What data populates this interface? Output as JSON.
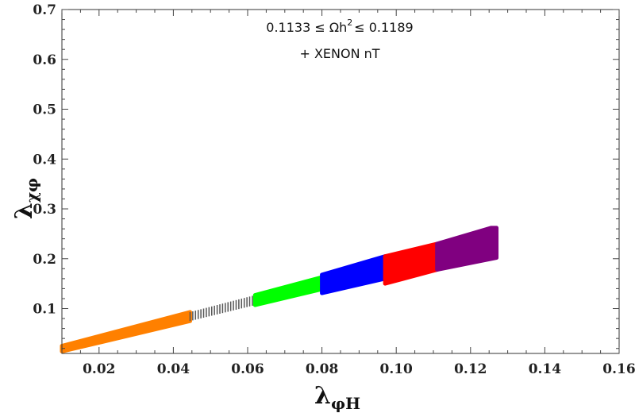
{
  "chart_data": {
    "type": "scatter",
    "title": "",
    "xlabel_main": "λ",
    "xlabel_sub": "φH",
    "ylabel_main": "λ",
    "ylabel_sub": "χφ",
    "xlim": [
      0.01,
      0.16
    ],
    "ylim": [
      0.01,
      0.7
    ],
    "xticks": [
      "0.02",
      "0.04",
      "0.06",
      "0.08",
      "0.10",
      "0.12",
      "0.14",
      "0.16"
    ],
    "yticks": [
      "0.1",
      "0.2",
      "0.3",
      "0.4",
      "0.5",
      "0.6",
      "0.7"
    ],
    "annotations": {
      "line1_a": "0.1133 ≤ Ωh",
      "line1_sup": "2",
      "line1_b": "≤ 0.1189",
      "line2": "+ XENON nT"
    },
    "grid": false,
    "series": [
      {
        "color": "#ff8000",
        "style": "band",
        "x_range": [
          0.01,
          0.0445
        ],
        "lower": [
          [
            0.01,
            0.014
          ],
          [
            0.0445,
            0.075
          ]
        ],
        "upper": [
          [
            0.01,
            0.025
          ],
          [
            0.0445,
            0.093
          ]
        ]
      },
      {
        "color": "#555555",
        "style": "hatched",
        "x_range": [
          0.0445,
          0.062
        ],
        "lower": [
          [
            0.0445,
            0.075
          ],
          [
            0.062,
            0.107
          ]
        ],
        "upper": [
          [
            0.0445,
            0.093
          ],
          [
            0.062,
            0.127
          ]
        ]
      },
      {
        "color": "#00ff00",
        "style": "band",
        "x_range": [
          0.062,
          0.08
        ],
        "lower": [
          [
            0.062,
            0.107
          ],
          [
            0.08,
            0.139
          ]
        ],
        "upper": [
          [
            0.062,
            0.127
          ],
          [
            0.08,
            0.163
          ]
        ]
      },
      {
        "color": "#0000ff",
        "style": "band",
        "x_range": [
          0.08,
          0.097
        ],
        "lower": [
          [
            0.08,
            0.131
          ],
          [
            0.097,
            0.16
          ]
        ],
        "upper": [
          [
            0.08,
            0.168
          ],
          [
            0.097,
            0.205
          ]
        ]
      },
      {
        "color": "#ff0000",
        "style": "band",
        "x_range": [
          0.097,
          0.111
        ],
        "lower": [
          [
            0.097,
            0.15
          ],
          [
            0.111,
            0.178
          ]
        ],
        "upper": [
          [
            0.097,
            0.205
          ],
          [
            0.111,
            0.23
          ]
        ]
      },
      {
        "color": "#800080",
        "style": "band",
        "x_range": [
          0.111,
          0.127
        ],
        "lower": [
          [
            0.111,
            0.178
          ],
          [
            0.127,
            0.202
          ]
        ],
        "upper": [
          [
            0.111,
            0.23
          ],
          [
            0.1255,
            0.262
          ]
        ]
      }
    ]
  }
}
